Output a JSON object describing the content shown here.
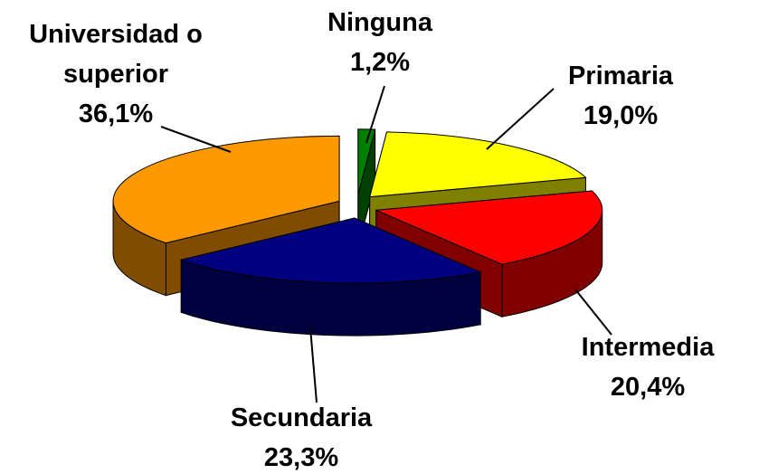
{
  "chart_data": {
    "type": "pie",
    "categories": [
      "Ninguna",
      "Primaria",
      "Intermedia",
      "Secundaria",
      "Universidad o superior"
    ],
    "values": [
      1.2,
      19.0,
      20.4,
      23.3,
      36.1
    ],
    "value_labels": [
      "1,2%",
      "19,0%",
      "20,4%",
      "23,3%",
      "36,1%"
    ],
    "colors": [
      "#008000",
      "#ffff00",
      "#ff0000",
      "#000080",
      "#ff9900"
    ]
  }
}
